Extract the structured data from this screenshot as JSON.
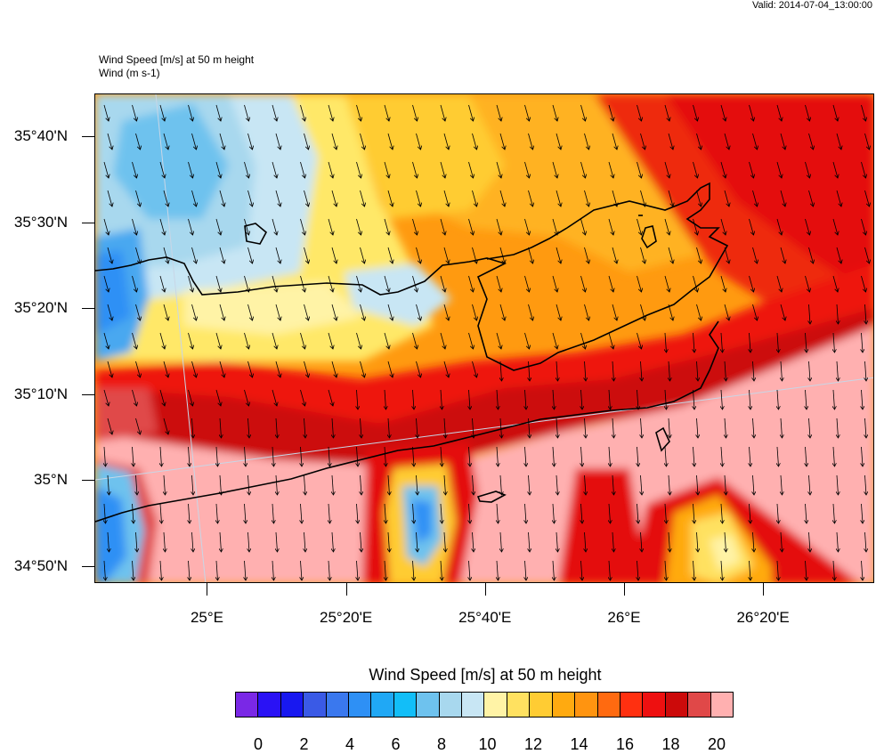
{
  "valid_time": "Valid: 2014-07-04_13:00:00",
  "header": {
    "line1": "Wind Speed [m/s] at 50 m height",
    "line2": "Wind   (m s-1)"
  },
  "map": {
    "lat_labels": [
      {
        "text": "35°40'N",
        "lat": 35.6667
      },
      {
        "text": "35°30'N",
        "lat": 35.5
      },
      {
        "text": "35°20'N",
        "lat": 35.3333
      },
      {
        "text": "35°10'N",
        "lat": 35.1667
      },
      {
        "text": "35°N",
        "lat": 35.0
      },
      {
        "text": "34°50'N",
        "lat": 34.8333
      }
    ],
    "lon_labels": [
      {
        "text": "25°E",
        "lon": 25.0
      },
      {
        "text": "25°20'E",
        "lon": 25.3333
      },
      {
        "text": "25°40'E",
        "lon": 25.6667
      },
      {
        "text": "26°E",
        "lon": 26.0
      },
      {
        "text": "26°20'E",
        "lon": 26.3333
      }
    ],
    "extent": {
      "lon_min": 24.73,
      "lon_max": 26.6,
      "lat_min": 34.8,
      "lat_max": 35.75
    },
    "wind_direction": "from north-northwest"
  },
  "colorbar": {
    "title": "Wind Speed [m/s] at 50 m height",
    "colors": [
      "#7a28e6",
      "#2a12f5",
      "#1818f0",
      "#3a5ae6",
      "#3a78ee",
      "#2e90f5",
      "#20a8f5",
      "#12bef8",
      "#6ec2ee",
      "#a8d8ee",
      "#c8e6f4",
      "#fff3a6",
      "#ffe160",
      "#ffcc33",
      "#ffaa10",
      "#ff9410",
      "#ff6a10",
      "#ff3010",
      "#ee1010",
      "#cc0a0a",
      "#e04848",
      "#ffb0b0"
    ],
    "labels": [
      "0",
      "2",
      "4",
      "6",
      "8",
      "10",
      "12",
      "14",
      "16",
      "18",
      "20"
    ]
  }
}
